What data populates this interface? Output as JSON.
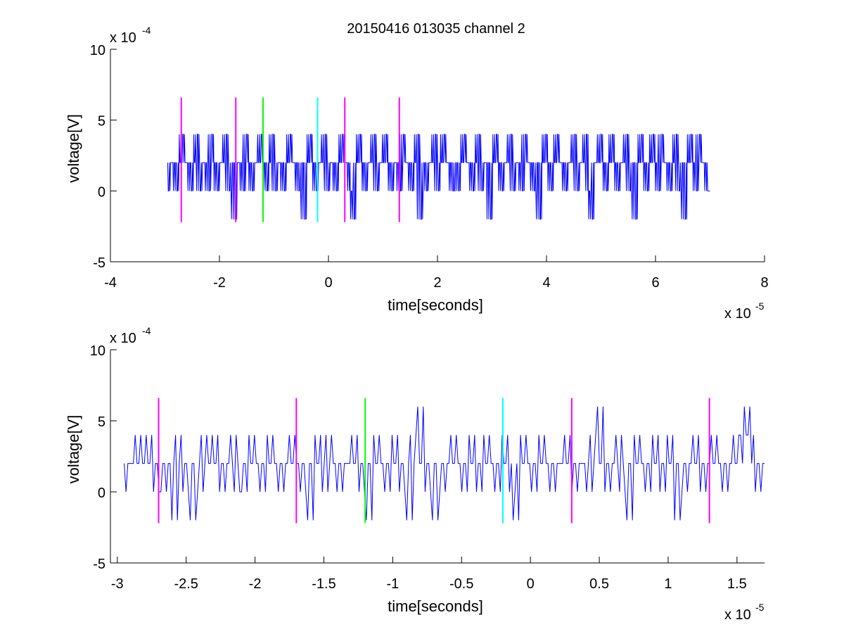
{
  "figure_title": "20150416 013035 channel 2",
  "chart_data": [
    {
      "type": "line",
      "title": "20150416 013035 channel 2",
      "xlabel": "time[seconds]",
      "ylabel": "voltage[V]",
      "x_exponent_label": "x 10",
      "x_exponent": "-5",
      "y_exponent_label": "x 10",
      "y_exponent": "-4",
      "xlim": [
        -4e-05,
        8e-05
      ],
      "ylim": [
        -0.0005,
        0.001
      ],
      "x_ticks": [
        -4,
        -2,
        0,
        2,
        4,
        6,
        8
      ],
      "x_tick_labels": [
        "-4",
        "-2",
        "0",
        "2",
        "4",
        "6",
        "8"
      ],
      "y_ticks": [
        -5,
        0,
        5,
        10
      ],
      "y_tick_labels": [
        "-5",
        "0",
        "5",
        "10"
      ],
      "grid": false,
      "series": [
        {
          "color": "#0000ff",
          "x_start": -2.95e-05,
          "x_end": 7e-05,
          "levels_1e4": [
            -2,
            0,
            2,
            4
          ],
          "typical_range_1e4": [
            0,
            4
          ],
          "values_1e4": [
            0,
            2,
            2,
            0,
            2,
            4,
            2,
            2,
            0,
            2,
            4,
            0,
            2,
            2,
            0,
            4,
            2,
            0,
            2,
            2,
            4,
            0,
            2,
            -2,
            2,
            2,
            0,
            4,
            2,
            0,
            2,
            2,
            4,
            2,
            0,
            2,
            4,
            0,
            2,
            2,
            0,
            2,
            4,
            2,
            2,
            0,
            2,
            -2,
            2,
            4,
            2,
            0,
            2,
            2,
            4,
            0,
            2,
            2,
            0,
            2,
            4,
            2,
            2,
            0,
            -2,
            2,
            4,
            2,
            0,
            2,
            2,
            4,
            0,
            2,
            2,
            4,
            2,
            0,
            2,
            2,
            0,
            4,
            2,
            2,
            0,
            2,
            4,
            -2,
            2,
            0,
            2,
            2,
            4,
            0,
            2,
            4,
            2,
            2,
            0,
            2,
            0,
            2,
            4,
            2,
            2,
            0,
            2,
            4,
            0,
            2,
            2,
            -2,
            2,
            4,
            2,
            0,
            2,
            2,
            4,
            0,
            2,
            2,
            0,
            4,
            2,
            2,
            0,
            2,
            -2,
            2,
            4,
            2,
            0,
            2,
            4,
            2,
            2,
            0,
            2,
            2,
            4,
            0,
            2,
            2,
            4,
            0,
            -2,
            2,
            2,
            4,
            2,
            0,
            2,
            4,
            2,
            0,
            2,
            2,
            4,
            0,
            2,
            -2,
            2,
            4,
            2,
            0,
            2,
            4,
            2,
            0,
            4,
            2,
            2,
            0,
            2,
            4,
            0,
            2,
            -2,
            2,
            4,
            2,
            0,
            4,
            2,
            2,
            0
          ]
        }
      ],
      "markers": [
        {
          "x": -2.7e-05,
          "color": "#ff00ff",
          "y_range_1e4": [
            -2.2,
            6.6
          ]
        },
        {
          "x": -1.7e-05,
          "color": "#ff00ff",
          "y_range_1e4": [
            -2.2,
            6.6
          ]
        },
        {
          "x": -1.2e-05,
          "color": "#00ff00",
          "y_range_1e4": [
            -2.2,
            6.6
          ]
        },
        {
          "x": -2e-06,
          "color": "#00ffff",
          "y_range_1e4": [
            -2.2,
            6.6
          ]
        },
        {
          "x": 3e-06,
          "color": "#ff00ff",
          "y_range_1e4": [
            -2.2,
            6.6
          ]
        },
        {
          "x": 1.3e-05,
          "color": "#ff00ff",
          "y_range_1e4": [
            -2.2,
            6.6
          ]
        }
      ]
    },
    {
      "type": "line",
      "title": "",
      "xlabel": "time[seconds]",
      "ylabel": "voltage[V]",
      "x_exponent_label": "x 10",
      "x_exponent": "-5",
      "y_exponent_label": "x 10",
      "y_exponent": "-4",
      "xlim": [
        -3.05e-05,
        1.7e-05
      ],
      "ylim": [
        -0.0005,
        0.001
      ],
      "x_ticks": [
        -3,
        -2.5,
        -2,
        -1.5,
        -1,
        -0.5,
        0,
        0.5,
        1,
        1.5
      ],
      "x_tick_labels": [
        "-3",
        "-2.5",
        "-2",
        "-1.5",
        "-1",
        "-0.5",
        "0",
        "0.5",
        "1",
        "1.5"
      ],
      "y_ticks": [
        -5,
        0,
        5,
        10
      ],
      "y_tick_labels": [
        "-5",
        "0",
        "5",
        "10"
      ],
      "grid": false,
      "series": [
        {
          "color": "#0000ff",
          "x_start": -2.95e-05,
          "x_end": 1.7e-05,
          "values_1e4": [
            0,
            2,
            2,
            2,
            4,
            2,
            2,
            4,
            2,
            0,
            2,
            0,
            2,
            2,
            -2,
            4,
            2,
            0,
            2,
            -2,
            2,
            0,
            4,
            2,
            2,
            4,
            2,
            0,
            2,
            2,
            4,
            0,
            2,
            0,
            2,
            4,
            2,
            2,
            0,
            2,
            4,
            2,
            2,
            0,
            2,
            2,
            4,
            2,
            2,
            0,
            2,
            -2,
            2,
            4,
            2,
            0,
            4,
            2,
            2,
            0,
            2,
            2,
            2,
            4,
            2,
            0,
            2,
            -2,
            2,
            4,
            2,
            2,
            0,
            2,
            4,
            2,
            0,
            2,
            -2,
            4,
            2,
            6,
            2,
            0,
            2,
            -2,
            2,
            0,
            2,
            2,
            4,
            2,
            2,
            0,
            2,
            4,
            2,
            0,
            2,
            4,
            2,
            2,
            0,
            2,
            4,
            2,
            0,
            -2,
            2,
            4,
            2,
            2,
            0,
            2,
            4,
            2,
            2,
            0,
            2,
            2,
            2,
            4,
            2,
            0,
            2,
            2,
            2,
            0,
            4,
            2,
            6,
            2,
            0,
            2,
            2,
            4,
            0,
            2,
            -2,
            2,
            4,
            2,
            2,
            0,
            2,
            4,
            2,
            0,
            2,
            4,
            2,
            -2,
            2,
            0,
            2,
            2,
            4,
            2,
            0,
            2,
            2,
            4,
            2,
            2,
            0,
            2,
            2,
            4,
            2,
            4,
            6,
            4,
            2,
            0,
            2
          ]
        }
      ],
      "markers": [
        {
          "x": -2.7e-05,
          "color": "#ff00ff",
          "y_range_1e4": [
            -2.2,
            6.6
          ]
        },
        {
          "x": -1.7e-05,
          "color": "#ff00ff",
          "y_range_1e4": [
            -2.2,
            6.6
          ]
        },
        {
          "x": -1.2e-05,
          "color": "#00ff00",
          "y_range_1e4": [
            -2.2,
            6.6
          ]
        },
        {
          "x": -2e-06,
          "color": "#00ffff",
          "y_range_1e4": [
            -2.2,
            6.6
          ]
        },
        {
          "x": 3e-06,
          "color": "#ff00ff",
          "y_range_1e4": [
            -2.2,
            6.6
          ]
        },
        {
          "x": 1.3e-05,
          "color": "#ff00ff",
          "y_range_1e4": [
            -2.2,
            6.6
          ]
        }
      ]
    }
  ]
}
